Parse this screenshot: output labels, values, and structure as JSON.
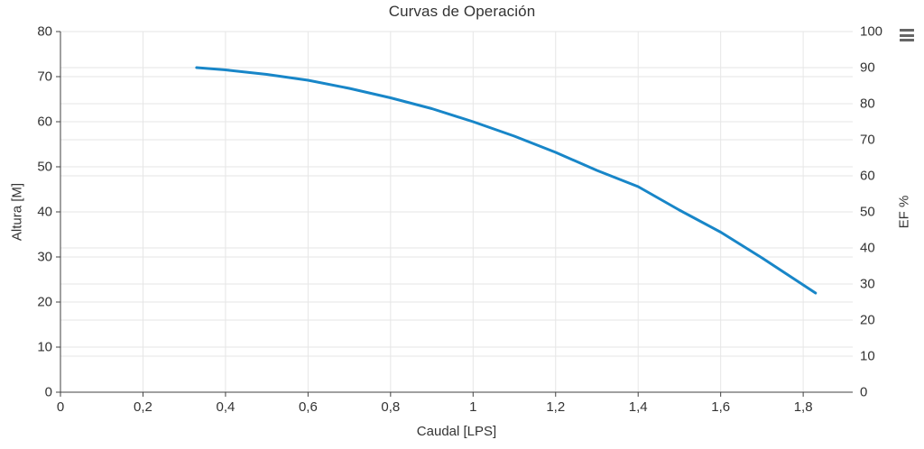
{
  "chart": {
    "title": "Curvas de Operación",
    "context_menu": {
      "icon": "hamburger-menu",
      "tooltip": "Chart context menu"
    }
  },
  "chart_data": {
    "type": "line",
    "title": "Curvas de Operación",
    "xlabel": "Caudal [LPS]",
    "xlim": [
      0,
      1.92
    ],
    "x_tick_values": [
      0,
      0.2,
      0.4,
      0.6,
      0.8,
      1,
      1.2,
      1.4,
      1.6,
      1.8
    ],
    "x_tick_labels": [
      "0",
      "0,2",
      "0,4",
      "0,6",
      "0,8",
      "1",
      "1,2",
      "1,4",
      "1,6",
      "1,8"
    ],
    "y_left": {
      "label": "Altura [M]",
      "lim": [
        0,
        80
      ],
      "ticks": [
        0,
        10,
        20,
        30,
        40,
        50,
        60,
        70,
        80
      ]
    },
    "y_right": {
      "label": "EF %",
      "lim": [
        0,
        100
      ],
      "ticks": [
        0,
        10,
        20,
        30,
        40,
        50,
        60,
        70,
        80,
        90,
        100
      ]
    },
    "grid": true,
    "legend": false,
    "series": [
      {
        "name": "Altura",
        "y_axis": "left",
        "color": "#1886c8",
        "line_width": 3,
        "points": [
          [
            0.33,
            72.0
          ],
          [
            0.4,
            71.5
          ],
          [
            0.5,
            70.5
          ],
          [
            0.6,
            69.2
          ],
          [
            0.7,
            67.4
          ],
          [
            0.8,
            65.3
          ],
          [
            0.9,
            62.9
          ],
          [
            1.0,
            60.0
          ],
          [
            1.1,
            56.8
          ],
          [
            1.2,
            53.2
          ],
          [
            1.3,
            49.2
          ],
          [
            1.4,
            45.6
          ],
          [
            1.5,
            40.4
          ],
          [
            1.6,
            35.5
          ],
          [
            1.7,
            29.8
          ],
          [
            1.8,
            23.8
          ],
          [
            1.83,
            22.0
          ]
        ]
      }
    ],
    "colors": {
      "grid": "#e6e6e6",
      "axis_line": "#424242",
      "tick_text": "#333333",
      "series_blue": "#1886c8",
      "menu_icon": "#666666"
    }
  }
}
